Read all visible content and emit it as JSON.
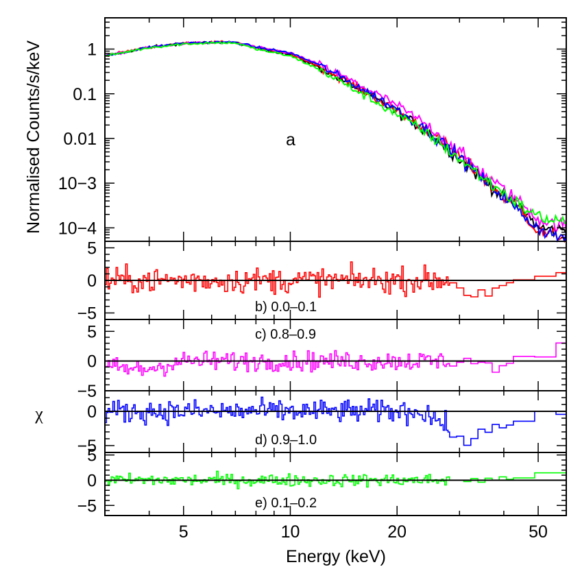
{
  "chart_data": {
    "type": "line",
    "x_scale": "log",
    "x_range": [
      3,
      60
    ],
    "xlabel": "Energy (keV)",
    "x_tick_labels": [
      {
        "value": 5,
        "label": "5"
      },
      {
        "value": 10,
        "label": "10"
      },
      {
        "value": 20,
        "label": "20"
      },
      {
        "value": 50,
        "label": "50"
      }
    ],
    "spectrum_panel": {
      "annotation": "a",
      "ylabel": "Normalised Counts/s/keV",
      "y_scale": "log",
      "ylim": [
        5e-05,
        5
      ],
      "y_tick_labels": [
        {
          "value": 1,
          "label": "1"
        },
        {
          "value": 0.1,
          "label": "0.1"
        },
        {
          "value": 0.01,
          "label": "0.01"
        },
        {
          "value": 0.001,
          "label": "10−3"
        },
        {
          "value": 0.0001,
          "label": "10−4"
        }
      ],
      "series": [
        {
          "color": "#000000",
          "x": [
            3,
            4,
            5,
            6,
            7,
            8,
            10,
            12,
            15,
            20,
            25,
            30,
            35,
            40,
            45,
            50,
            55,
            60
          ],
          "y": [
            0.7,
            1.1,
            1.35,
            1.4,
            1.4,
            1.05,
            0.75,
            0.4,
            0.15,
            0.04,
            0.012,
            0.0035,
            0.0012,
            0.0005,
            0.00028,
            0.0001,
            9e-05,
            9e-05
          ]
        },
        {
          "color": "#ff0000",
          "x": [
            3,
            4,
            5,
            6,
            7,
            8,
            10,
            12,
            15,
            20,
            25,
            30,
            35,
            40,
            45,
            50,
            55,
            60
          ],
          "y": [
            0.72,
            1.1,
            1.35,
            1.42,
            1.4,
            1.08,
            0.78,
            0.42,
            0.16,
            0.042,
            0.013,
            0.004,
            0.0013,
            0.0005,
            0.00025,
            8e-05,
            7e-05,
            6e-05
          ]
        },
        {
          "color": "#ff00ff",
          "x": [
            3,
            4,
            5,
            6,
            7,
            8,
            10,
            12,
            15,
            20,
            25,
            30,
            35,
            40,
            45,
            50,
            55,
            60
          ],
          "y": [
            0.7,
            1.08,
            1.33,
            1.4,
            1.4,
            1.1,
            0.82,
            0.46,
            0.19,
            0.055,
            0.017,
            0.005,
            0.0017,
            0.0007,
            0.00035,
            0.00016,
            0.00012,
            0.00011
          ]
        },
        {
          "color": "#0000ff",
          "x": [
            3,
            4,
            5,
            6,
            7,
            8,
            10,
            12,
            15,
            20,
            25,
            30,
            35,
            40,
            45,
            50,
            55,
            60
          ],
          "y": [
            0.7,
            1.1,
            1.35,
            1.42,
            1.42,
            1.1,
            0.82,
            0.45,
            0.17,
            0.045,
            0.013,
            0.0038,
            0.0012,
            0.0005,
            0.0002,
            0.0001,
            7e-05,
            6e-05
          ]
        },
        {
          "color": "#00ff00",
          "x": [
            3,
            4,
            5,
            6,
            7,
            8,
            10,
            12,
            15,
            20,
            25,
            30,
            35,
            40,
            45,
            50,
            55,
            60
          ],
          "y": [
            0.7,
            1.08,
            1.3,
            1.38,
            1.38,
            1.0,
            0.7,
            0.36,
            0.13,
            0.035,
            0.011,
            0.0035,
            0.0013,
            0.0006,
            0.0003,
            0.00018,
            0.00015,
            0.00014
          ]
        }
      ]
    },
    "residual_ylabel": "χ",
    "residual_panels": [
      {
        "label": "b) 0.0–0.1",
        "color": "#ff0000",
        "ylim": [
          -6,
          6
        ],
        "y_tick_labels": [
          {
            "value": 5,
            "label": "5"
          },
          {
            "value": 0,
            "label": "0"
          },
          {
            "value": -5,
            "label": "−5"
          }
        ],
        "spread": 1.4,
        "trend": [
          [
            3,
            0
          ],
          [
            28,
            0
          ],
          [
            32,
            -2.5
          ],
          [
            36,
            -1.5
          ],
          [
            40,
            0
          ],
          [
            60,
            0.5
          ]
        ]
      },
      {
        "label": "c) 0.8–0.9",
        "color": "#ff00ff",
        "ylim": [
          -5,
          7
        ],
        "y_tick_labels": [
          {
            "value": 5,
            "label": "5"
          },
          {
            "value": 0,
            "label": "0"
          },
          {
            "value": -5,
            "label": "−5"
          }
        ],
        "spread": 1.2,
        "trend": [
          [
            3,
            -1
          ],
          [
            3.8,
            -1.5
          ],
          [
            5,
            0
          ],
          [
            34,
            0
          ],
          [
            37,
            -1.5
          ],
          [
            42,
            0
          ],
          [
            50,
            1.5
          ],
          [
            60,
            2.8
          ]
        ]
      },
      {
        "label": "d) 0.9–1.0",
        "color": "#0000ff",
        "ylim": [
          -6,
          3
        ],
        "y_tick_labels": [
          {
            "value": 0,
            "label": "0"
          },
          {
            "value": -5,
            "label": "−5"
          }
        ],
        "spread": 1.2,
        "trend": [
          [
            3,
            0
          ],
          [
            24,
            0
          ],
          [
            27,
            -2
          ],
          [
            30,
            -4.5
          ],
          [
            34,
            -3.5
          ],
          [
            40,
            -2
          ],
          [
            48,
            0
          ],
          [
            60,
            0.2
          ]
        ]
      },
      {
        "label": "e) 0.1–0.2",
        "color": "#00ff00",
        "ylim": [
          -7,
          5.5
        ],
        "y_tick_labels": [
          {
            "value": 5,
            "label": "5"
          },
          {
            "value": 0,
            "label": "0"
          },
          {
            "value": -5,
            "label": "−5"
          }
        ],
        "spread": 0.9,
        "trend": [
          [
            3,
            0
          ],
          [
            38,
            0
          ],
          [
            45,
            1
          ],
          [
            60,
            2
          ]
        ]
      }
    ]
  }
}
